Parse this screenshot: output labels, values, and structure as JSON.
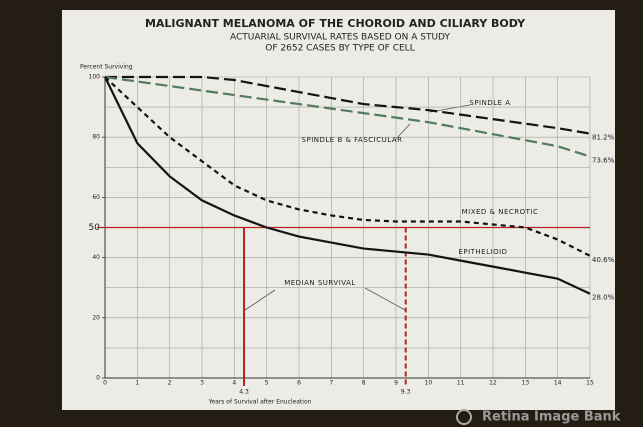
{
  "chart_data": {
    "type": "line",
    "title": "MALIGNANT MELANOMA OF THE CHOROID AND CILIARY BODY",
    "subtitle": [
      "ACTUARIAL SURVIVAL RATES BASED ON A STUDY",
      "OF 2652 CASES BY TYPE OF CELL"
    ],
    "y_label": "Percent Surviving",
    "x_label": "Years of Survival after Enucleation",
    "x": [
      0,
      1,
      2,
      3,
      4,
      5,
      6,
      7,
      8,
      9,
      10,
      11,
      12,
      13,
      14,
      15
    ],
    "xlim": [
      0,
      15
    ],
    "ylim": [
      0,
      100
    ],
    "xticks": [
      0,
      1,
      2,
      3,
      4,
      5,
      6,
      7,
      8,
      9,
      10,
      11,
      12,
      13,
      14,
      15
    ],
    "yticks": [
      0,
      20,
      40,
      50,
      60,
      80,
      100
    ],
    "y_gridlines": [
      0,
      10,
      20,
      30,
      40,
      50,
      60,
      70,
      80,
      90,
      100
    ],
    "grid": true,
    "series": [
      {
        "name": "SPINDLE A",
        "color": "#141414",
        "style": "long-dash",
        "end_label": "81.2%",
        "values": [
          100,
          100,
          100,
          100,
          99,
          97,
          95,
          93,
          91,
          90,
          89,
          87.5,
          86,
          84.5,
          83,
          81.2
        ]
      },
      {
        "name": "SPINDLE B & FASCICULAR",
        "color": "#4f7d5c",
        "style": "long-dash",
        "end_label": "73.6%",
        "values": [
          100,
          98.5,
          97,
          95.5,
          94,
          92.5,
          91,
          89.5,
          88,
          86.5,
          85,
          83,
          81,
          79,
          77,
          73.6
        ]
      },
      {
        "name": "MIXED & NECROTIC",
        "color": "#141414",
        "style": "short-dash",
        "end_label": "40.6%",
        "values": [
          100,
          90,
          80,
          72,
          64,
          59,
          56,
          54,
          52.5,
          52,
          52,
          52,
          51,
          50,
          46,
          40.6
        ]
      },
      {
        "name": "EPITHELIOID",
        "color": "#141414",
        "style": "solid",
        "end_label": "28.0%",
        "values": [
          100,
          78,
          67,
          59,
          54,
          50,
          47,
          45,
          43,
          42,
          41,
          39,
          37,
          35,
          33,
          28.0
        ]
      }
    ],
    "median_survival": {
      "label": "MEDIAN SURVIVAL",
      "y": 50,
      "x": [
        4.3,
        9.3
      ],
      "color": "#b3261e"
    },
    "watermark": "Retina Image Bank"
  }
}
